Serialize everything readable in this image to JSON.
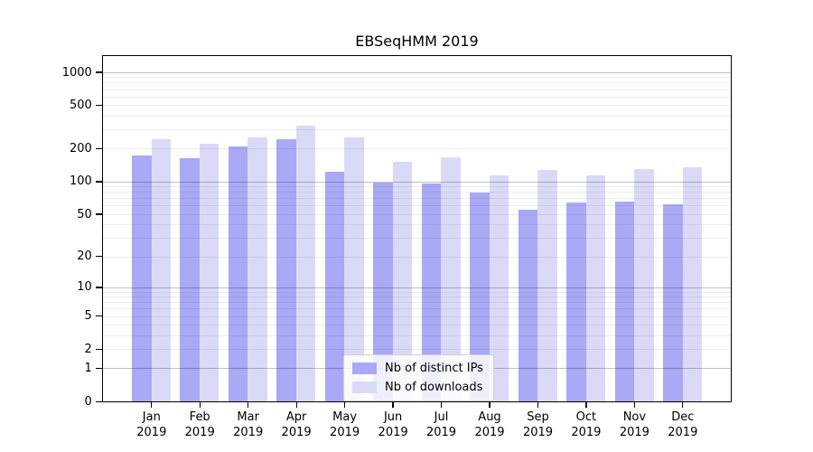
{
  "title": "EBSeqHMM 2019",
  "chart_data": {
    "type": "bar",
    "title": "EBSeqHMM 2019",
    "categories": [
      "Jan 2019",
      "Feb 2019",
      "Mar 2019",
      "Apr 2019",
      "May 2019",
      "Jun 2019",
      "Jul 2019",
      "Aug 2019",
      "Sep 2019",
      "Oct 2019",
      "Nov 2019",
      "Dec 2019"
    ],
    "category_months": [
      "Jan",
      "Feb",
      "Mar",
      "Apr",
      "May",
      "Jun",
      "Jul",
      "Aug",
      "Sep",
      "Oct",
      "Nov",
      "Dec"
    ],
    "category_year": "2019",
    "series": [
      {
        "name": "Nb of distinct IPs",
        "color": "#a9a9f5",
        "values": [
          172,
          162,
          208,
          245,
          123,
          98,
          96,
          79,
          55,
          64,
          65,
          61
        ]
      },
      {
        "name": "Nb of downloads",
        "color": "#dadaf8",
        "values": [
          244,
          222,
          255,
          326,
          255,
          151,
          168,
          114,
          127,
          114,
          129,
          136
        ]
      }
    ],
    "xlabel": "",
    "ylabel": "",
    "yscale": "log1p",
    "ylim": [
      0,
      1000
    ],
    "yticks": [
      0,
      1,
      2,
      5,
      10,
      20,
      50,
      100,
      200,
      500,
      1000
    ],
    "ytick_labels": [
      "0",
      "1",
      "2",
      "5",
      "10",
      "20",
      "50",
      "100",
      "200",
      "500",
      "1000"
    ],
    "grid": {
      "major_lines": [
        1,
        10,
        100,
        1000
      ],
      "minor_lines_pattern": "2-9 per decade",
      "major_color": "#c2c2c2",
      "minor_color": "#ededed"
    },
    "legend": {
      "position": "lower-center",
      "items": [
        "Nb of distinct IPs",
        "Nb of downloads"
      ]
    }
  }
}
